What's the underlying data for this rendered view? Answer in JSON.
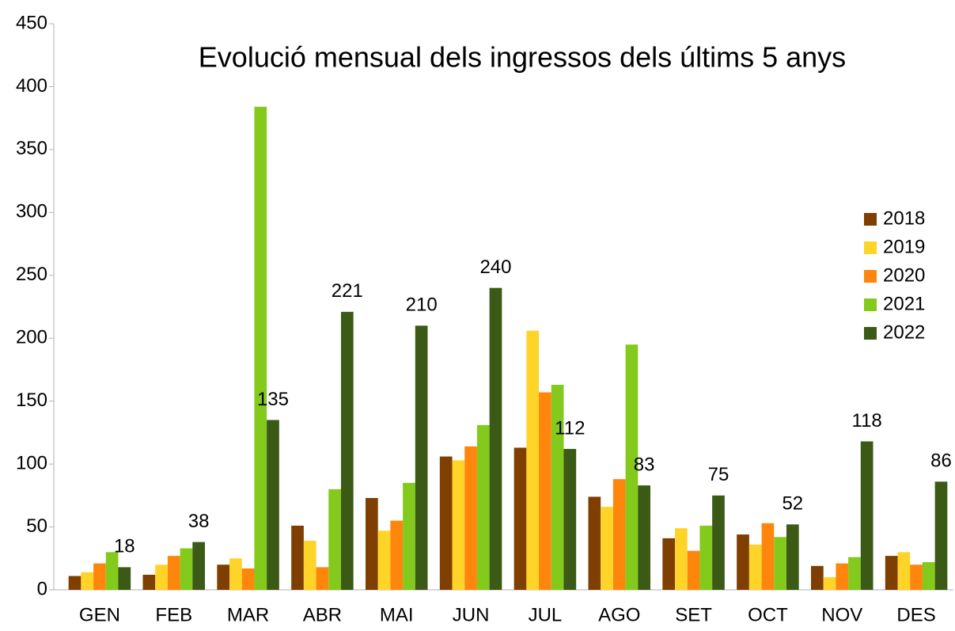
{
  "chart_data": {
    "type": "bar",
    "title": "Evolució mensual dels ingressos dels últims 5 anys",
    "categories": [
      "GEN",
      "FEB",
      "MAR",
      "ABR",
      "MAI",
      "JUN",
      "JUL",
      "AGO",
      "SET",
      "OCT",
      "NOV",
      "DES"
    ],
    "series": [
      {
        "name": "2018",
        "color": "#7e3f00",
        "values": [
          11,
          12,
          20,
          51,
          73,
          106,
          113,
          74,
          41,
          44,
          19,
          27
        ]
      },
      {
        "name": "2019",
        "color": "#ffd428",
        "values": [
          14,
          20,
          25,
          39,
          47,
          103,
          206,
          66,
          49,
          36,
          10,
          30
        ]
      },
      {
        "name": "2020",
        "color": "#ff860d",
        "values": [
          21,
          27,
          17,
          18,
          55,
          114,
          157,
          88,
          31,
          53,
          21,
          20
        ]
      },
      {
        "name": "2021",
        "color": "#83ca1c",
        "values": [
          30,
          33,
          384,
          80,
          85,
          131,
          163,
          195,
          51,
          42,
          26,
          22
        ]
      },
      {
        "name": "2022",
        "color": "#3b5a16",
        "values": [
          18,
          38,
          135,
          221,
          210,
          240,
          112,
          83,
          75,
          52,
          118,
          86
        ],
        "data_labels": true
      }
    ],
    "ylim": [
      0,
      450
    ],
    "yticks": [
      0,
      50,
      100,
      150,
      200,
      250,
      300,
      350,
      400,
      450
    ],
    "grid": false,
    "legend": "right"
  }
}
